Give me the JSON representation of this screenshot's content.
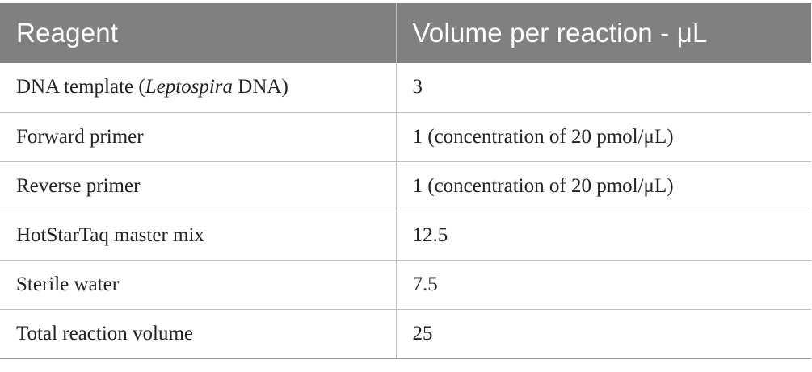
{
  "table": {
    "headers": [
      "Reagent",
      "Volume per reaction - μL"
    ],
    "rows": [
      {
        "reagent": {
          "prefix": "DNA template (",
          "italic": "Leptospira",
          "suffix": " DNA)"
        },
        "volume": "3"
      },
      {
        "reagent": {
          "text": "Forward primer"
        },
        "volume": "1 (concentration of 20 pmol/μL)"
      },
      {
        "reagent": {
          "text": "Reverse primer"
        },
        "volume": "1 (concentration of 20 pmol/μL)"
      },
      {
        "reagent": {
          "text": "HotStarTaq master mix"
        },
        "volume": "12.5"
      },
      {
        "reagent": {
          "text": "Sterile water"
        },
        "volume": "7.5"
      },
      {
        "reagent": {
          "text": "Total reaction volume"
        },
        "volume": "25"
      }
    ]
  },
  "colors": {
    "header_bg": "#808080",
    "header_text": "#ffffff",
    "grid_line": "#bfbfbf",
    "body_text": "#222222"
  }
}
